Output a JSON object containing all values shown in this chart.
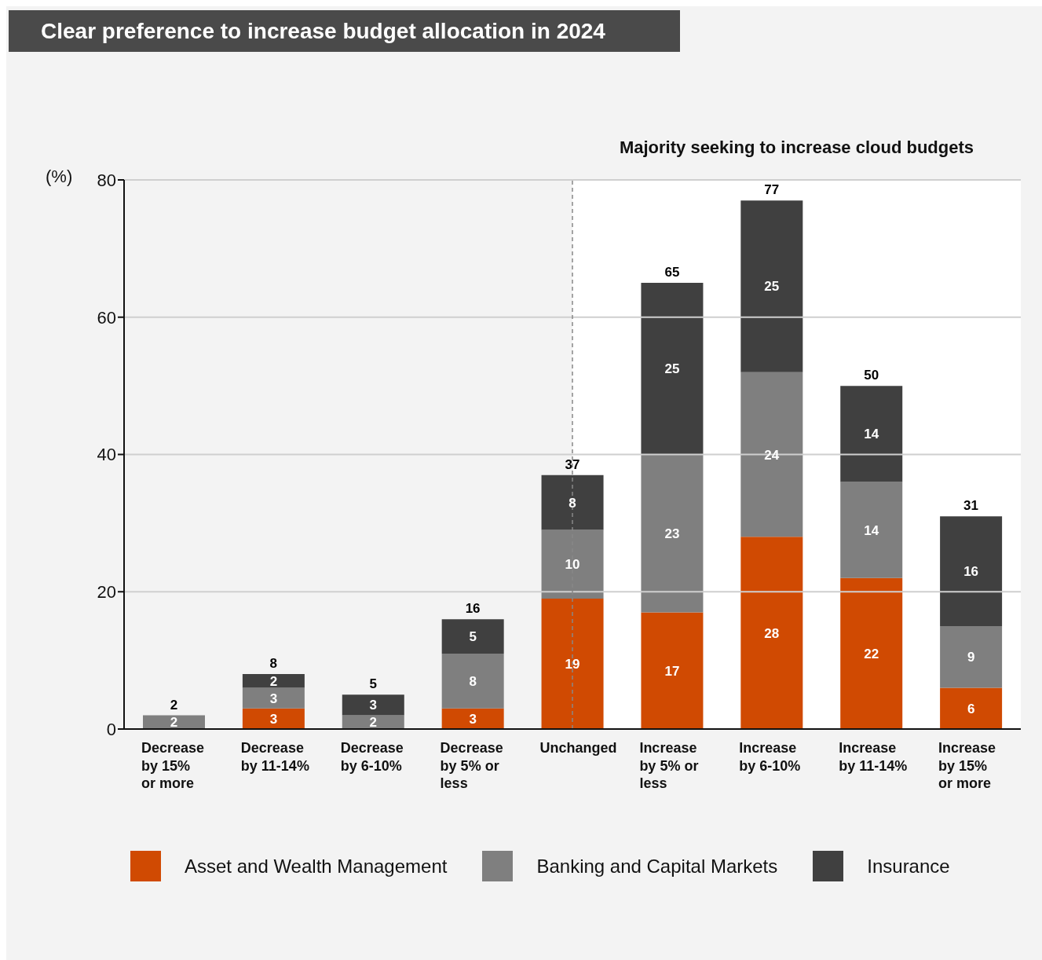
{
  "chart_data": {
    "type": "bar",
    "title": "Clear preference to increase budget allocation in 2024",
    "ylabel": "(%)",
    "categories": [
      "Decrease by 15% or more",
      "Decrease by 11-14%",
      "Decrease by 6-10%",
      "Decrease by 5% or less",
      "Unchanged",
      "Increase by 5% or less",
      "Increase by 6-10%",
      "Increase by 11-14%",
      "Increase by 15% or more"
    ],
    "series": [
      {
        "name": "Asset and Wealth Management",
        "color": "#d04a02",
        "values": [
          null,
          3,
          null,
          3,
          19,
          17,
          28,
          22,
          6
        ]
      },
      {
        "name": "Banking and Capital Markets",
        "color": "#7f7f7f",
        "values": [
          2,
          3,
          2,
          8,
          10,
          23,
          24,
          14,
          9
        ]
      },
      {
        "name": "Insurance",
        "color": "#404040",
        "values": [
          null,
          2,
          3,
          5,
          8,
          25,
          25,
          14,
          16
        ]
      }
    ],
    "stacked": true,
    "data_labels": true,
    "totals": [
      "2",
      "8",
      "5",
      "16",
      "37",
      "65",
      "77",
      "50",
      "31"
    ],
    "ylim": [
      0,
      80
    ],
    "yticks": [
      0,
      20,
      40,
      60,
      80
    ],
    "grid": "y",
    "legend": "bottom",
    "bands": [
      {
        "axis": "x",
        "from": "Unchanged",
        "to": "Increase by 15% or more",
        "label": "Majority seeking to increase cloud budgets",
        "color": "#ffffff"
      }
    ],
    "ref_lines": [
      {
        "axis": "x",
        "value": "Unchanged",
        "color": "#888888",
        "line_style": "dashed"
      }
    ]
  }
}
